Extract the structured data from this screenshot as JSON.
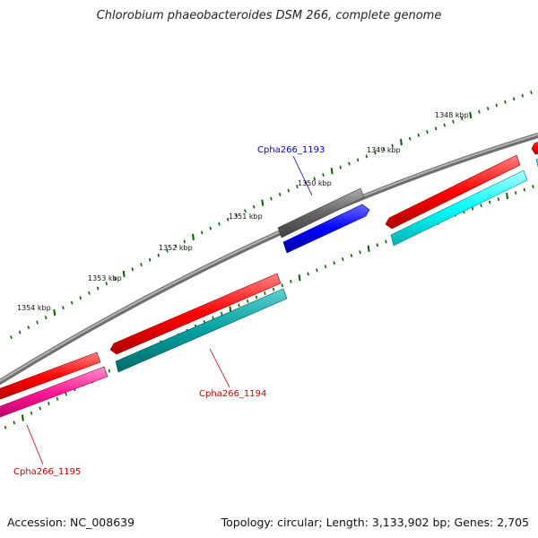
{
  "title": "Chlorobium phaeobacteroides DSM 266, complete genome",
  "footer": {
    "accession": "Accession: NC_008639",
    "summary": "Topology: circular; Length: 3,133,902 bp; Genes: 2,705"
  },
  "ticks": [
    {
      "label": "1348 kbp"
    },
    {
      "label": "1349 kbp"
    },
    {
      "label": "1350 kbp"
    },
    {
      "label": "1351 kbp"
    },
    {
      "label": "1352 kbp"
    },
    {
      "label": "1353 kbp"
    },
    {
      "label": "1354 kbp"
    }
  ],
  "genes": [
    {
      "label": "Cpha266_1193",
      "color": "#0000cc"
    },
    {
      "label": "Cpha266_1194",
      "color": "#cc0000"
    },
    {
      "label": "Cpha266_1195",
      "color": "#cc0000"
    }
  ],
  "colors": {
    "backbone": "#808080",
    "forward_gene": "#ff0000",
    "forward_feature": "#00ffff",
    "reverse_gene": "#666666",
    "reverse_feature": "#0000ff",
    "pink_feature": "#ff1493",
    "teal_feature": "#00a0a0",
    "tick": "#006400"
  }
}
